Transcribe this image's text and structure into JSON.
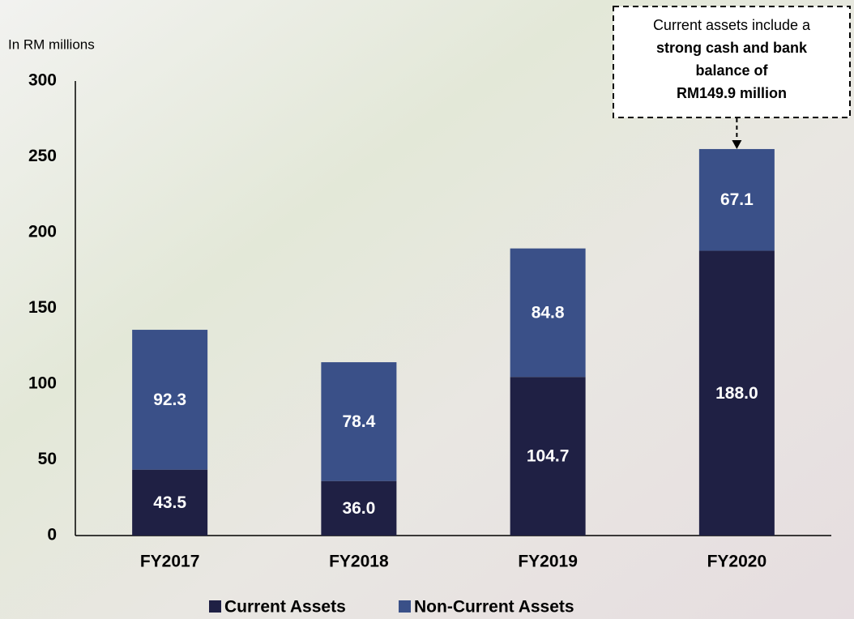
{
  "chart_data": {
    "type": "stacked_bar",
    "y_axis_label": "In RM millions",
    "categories": [
      "FY2017",
      "FY2018",
      "FY2019",
      "FY2020"
    ],
    "series": [
      {
        "name": "Current Assets",
        "color": "#1f2044",
        "values": [
          43.5,
          36.0,
          104.7,
          188.0
        ],
        "value_labels": [
          "43.5",
          "36.0",
          "104.7",
          "188.0"
        ]
      },
      {
        "name": "Non-Current Assets",
        "color": "#3a5088",
        "values": [
          92.3,
          78.4,
          84.8,
          67.1
        ],
        "value_labels": [
          "92.3",
          "78.4",
          "84.8",
          "67.1"
        ]
      }
    ],
    "ylim": [
      0,
      300
    ],
    "yticks": [
      0,
      50,
      100,
      150,
      200,
      250,
      300
    ],
    "grid": false,
    "legend": "bottom",
    "annotation_lines": [
      "Current assets include a",
      "strong cash and bank",
      "balance of",
      "RM149.9 million"
    ]
  }
}
